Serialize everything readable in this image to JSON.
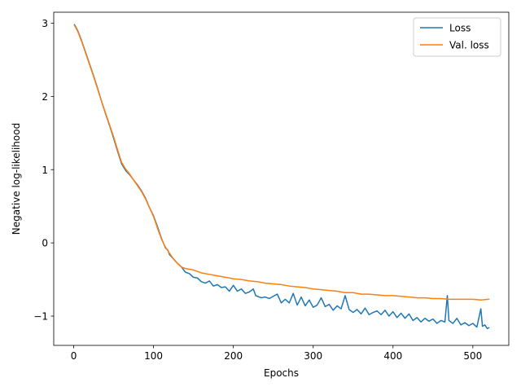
{
  "chart_data": {
    "type": "line",
    "title": "",
    "xlabel": "Epochs",
    "ylabel": "Negative log-likelihood",
    "xlim": [
      -25,
      545
    ],
    "ylim": [
      -1.4,
      3.15
    ],
    "xticks": [
      0,
      100,
      200,
      300,
      400,
      500
    ],
    "yticks": [
      -1,
      0,
      1,
      2,
      3
    ],
    "grid": false,
    "legend": {
      "position": "upper-right"
    },
    "series": [
      {
        "name": "Loss",
        "color": "#1f77b4",
        "points": [
          [
            1,
            2.98
          ],
          [
            5,
            2.9
          ],
          [
            10,
            2.76
          ],
          [
            15,
            2.6
          ],
          [
            20,
            2.44
          ],
          [
            25,
            2.28
          ],
          [
            30,
            2.11
          ],
          [
            35,
            1.93
          ],
          [
            40,
            1.76
          ],
          [
            45,
            1.6
          ],
          [
            50,
            1.43
          ],
          [
            55,
            1.25
          ],
          [
            60,
            1.08
          ],
          [
            65,
            0.99
          ],
          [
            70,
            0.93
          ],
          [
            75,
            0.86
          ],
          [
            80,
            0.79
          ],
          [
            85,
            0.71
          ],
          [
            90,
            0.61
          ],
          [
            95,
            0.48
          ],
          [
            100,
            0.37
          ],
          [
            105,
            0.22
          ],
          [
            110,
            0.06
          ],
          [
            115,
            -0.07
          ],
          [
            118,
            -0.1
          ],
          [
            120,
            -0.16
          ],
          [
            125,
            -0.22
          ],
          [
            130,
            -0.28
          ],
          [
            135,
            -0.33
          ],
          [
            140,
            -0.4
          ],
          [
            145,
            -0.42
          ],
          [
            150,
            -0.47
          ],
          [
            155,
            -0.48
          ],
          [
            160,
            -0.53
          ],
          [
            165,
            -0.55
          ],
          [
            170,
            -0.52
          ],
          [
            175,
            -0.59
          ],
          [
            180,
            -0.57
          ],
          [
            185,
            -0.61
          ],
          [
            190,
            -0.6
          ],
          [
            195,
            -0.66
          ],
          [
            200,
            -0.58
          ],
          [
            205,
            -0.66
          ],
          [
            210,
            -0.63
          ],
          [
            215,
            -0.69
          ],
          [
            220,
            -0.67
          ],
          [
            225,
            -0.63
          ],
          [
            228,
            -0.72
          ],
          [
            235,
            -0.75
          ],
          [
            240,
            -0.74
          ],
          [
            245,
            -0.76
          ],
          [
            250,
            -0.73
          ],
          [
            255,
            -0.7
          ],
          [
            260,
            -0.82
          ],
          [
            265,
            -0.77
          ],
          [
            270,
            -0.82
          ],
          [
            275,
            -0.69
          ],
          [
            280,
            -0.85
          ],
          [
            285,
            -0.74
          ],
          [
            290,
            -0.86
          ],
          [
            295,
            -0.78
          ],
          [
            300,
            -0.88
          ],
          [
            305,
            -0.85
          ],
          [
            310,
            -0.75
          ],
          [
            315,
            -0.87
          ],
          [
            320,
            -0.84
          ],
          [
            325,
            -0.92
          ],
          [
            330,
            -0.86
          ],
          [
            335,
            -0.9
          ],
          [
            340,
            -0.72
          ],
          [
            345,
            -0.91
          ],
          [
            350,
            -0.95
          ],
          [
            355,
            -0.91
          ],
          [
            360,
            -0.97
          ],
          [
            365,
            -0.89
          ],
          [
            370,
            -0.98
          ],
          [
            375,
            -0.95
          ],
          [
            380,
            -0.93
          ],
          [
            385,
            -0.98
          ],
          [
            390,
            -0.92
          ],
          [
            395,
            -1.0
          ],
          [
            400,
            -0.94
          ],
          [
            405,
            -1.02
          ],
          [
            410,
            -0.96
          ],
          [
            415,
            -1.03
          ],
          [
            420,
            -0.97
          ],
          [
            425,
            -1.06
          ],
          [
            430,
            -1.02
          ],
          [
            435,
            -1.08
          ],
          [
            440,
            -1.03
          ],
          [
            445,
            -1.07
          ],
          [
            450,
            -1.04
          ],
          [
            455,
            -1.1
          ],
          [
            460,
            -1.06
          ],
          [
            465,
            -1.08
          ],
          [
            468,
            -0.72
          ],
          [
            470,
            -1.06
          ],
          [
            475,
            -1.1
          ],
          [
            480,
            -1.03
          ],
          [
            485,
            -1.12
          ],
          [
            490,
            -1.09
          ],
          [
            495,
            -1.13
          ],
          [
            500,
            -1.1
          ],
          [
            505,
            -1.15
          ],
          [
            510,
            -0.9
          ],
          [
            512,
            -1.14
          ],
          [
            515,
            -1.12
          ],
          [
            518,
            -1.17
          ],
          [
            520,
            -1.16
          ]
        ]
      },
      {
        "name": "Val. loss",
        "color": "#ff7f0e",
        "points": [
          [
            1,
            2.97
          ],
          [
            5,
            2.89
          ],
          [
            10,
            2.75
          ],
          [
            15,
            2.59
          ],
          [
            20,
            2.43
          ],
          [
            25,
            2.27
          ],
          [
            30,
            2.1
          ],
          [
            35,
            1.93
          ],
          [
            40,
            1.77
          ],
          [
            45,
            1.61
          ],
          [
            50,
            1.45
          ],
          [
            55,
            1.27
          ],
          [
            60,
            1.1
          ],
          [
            65,
            1.01
          ],
          [
            70,
            0.94
          ],
          [
            75,
            0.86
          ],
          [
            80,
            0.78
          ],
          [
            85,
            0.7
          ],
          [
            90,
            0.6
          ],
          [
            95,
            0.48
          ],
          [
            100,
            0.36
          ],
          [
            105,
            0.2
          ],
          [
            110,
            0.05
          ],
          [
            115,
            -0.06
          ],
          [
            120,
            -0.14
          ],
          [
            125,
            -0.22
          ],
          [
            130,
            -0.28
          ],
          [
            135,
            -0.33
          ],
          [
            140,
            -0.35
          ],
          [
            145,
            -0.36
          ],
          [
            150,
            -0.37
          ],
          [
            155,
            -0.39
          ],
          [
            160,
            -0.41
          ],
          [
            165,
            -0.42
          ],
          [
            170,
            -0.43
          ],
          [
            175,
            -0.44
          ],
          [
            180,
            -0.45
          ],
          [
            185,
            -0.46
          ],
          [
            190,
            -0.47
          ],
          [
            195,
            -0.48
          ],
          [
            200,
            -0.49
          ],
          [
            210,
            -0.5
          ],
          [
            220,
            -0.52
          ],
          [
            230,
            -0.53
          ],
          [
            240,
            -0.55
          ],
          [
            250,
            -0.56
          ],
          [
            260,
            -0.57
          ],
          [
            270,
            -0.59
          ],
          [
            280,
            -0.6
          ],
          [
            290,
            -0.61
          ],
          [
            300,
            -0.63
          ],
          [
            310,
            -0.64
          ],
          [
            320,
            -0.65
          ],
          [
            330,
            -0.66
          ],
          [
            340,
            -0.68
          ],
          [
            350,
            -0.68
          ],
          [
            360,
            -0.7
          ],
          [
            370,
            -0.7
          ],
          [
            380,
            -0.71
          ],
          [
            390,
            -0.72
          ],
          [
            400,
            -0.72
          ],
          [
            410,
            -0.73
          ],
          [
            420,
            -0.74
          ],
          [
            430,
            -0.75
          ],
          [
            440,
            -0.75
          ],
          [
            450,
            -0.76
          ],
          [
            460,
            -0.76
          ],
          [
            470,
            -0.77
          ],
          [
            480,
            -0.77
          ],
          [
            490,
            -0.77
          ],
          [
            500,
            -0.77
          ],
          [
            510,
            -0.78
          ],
          [
            520,
            -0.77
          ]
        ]
      }
    ]
  }
}
